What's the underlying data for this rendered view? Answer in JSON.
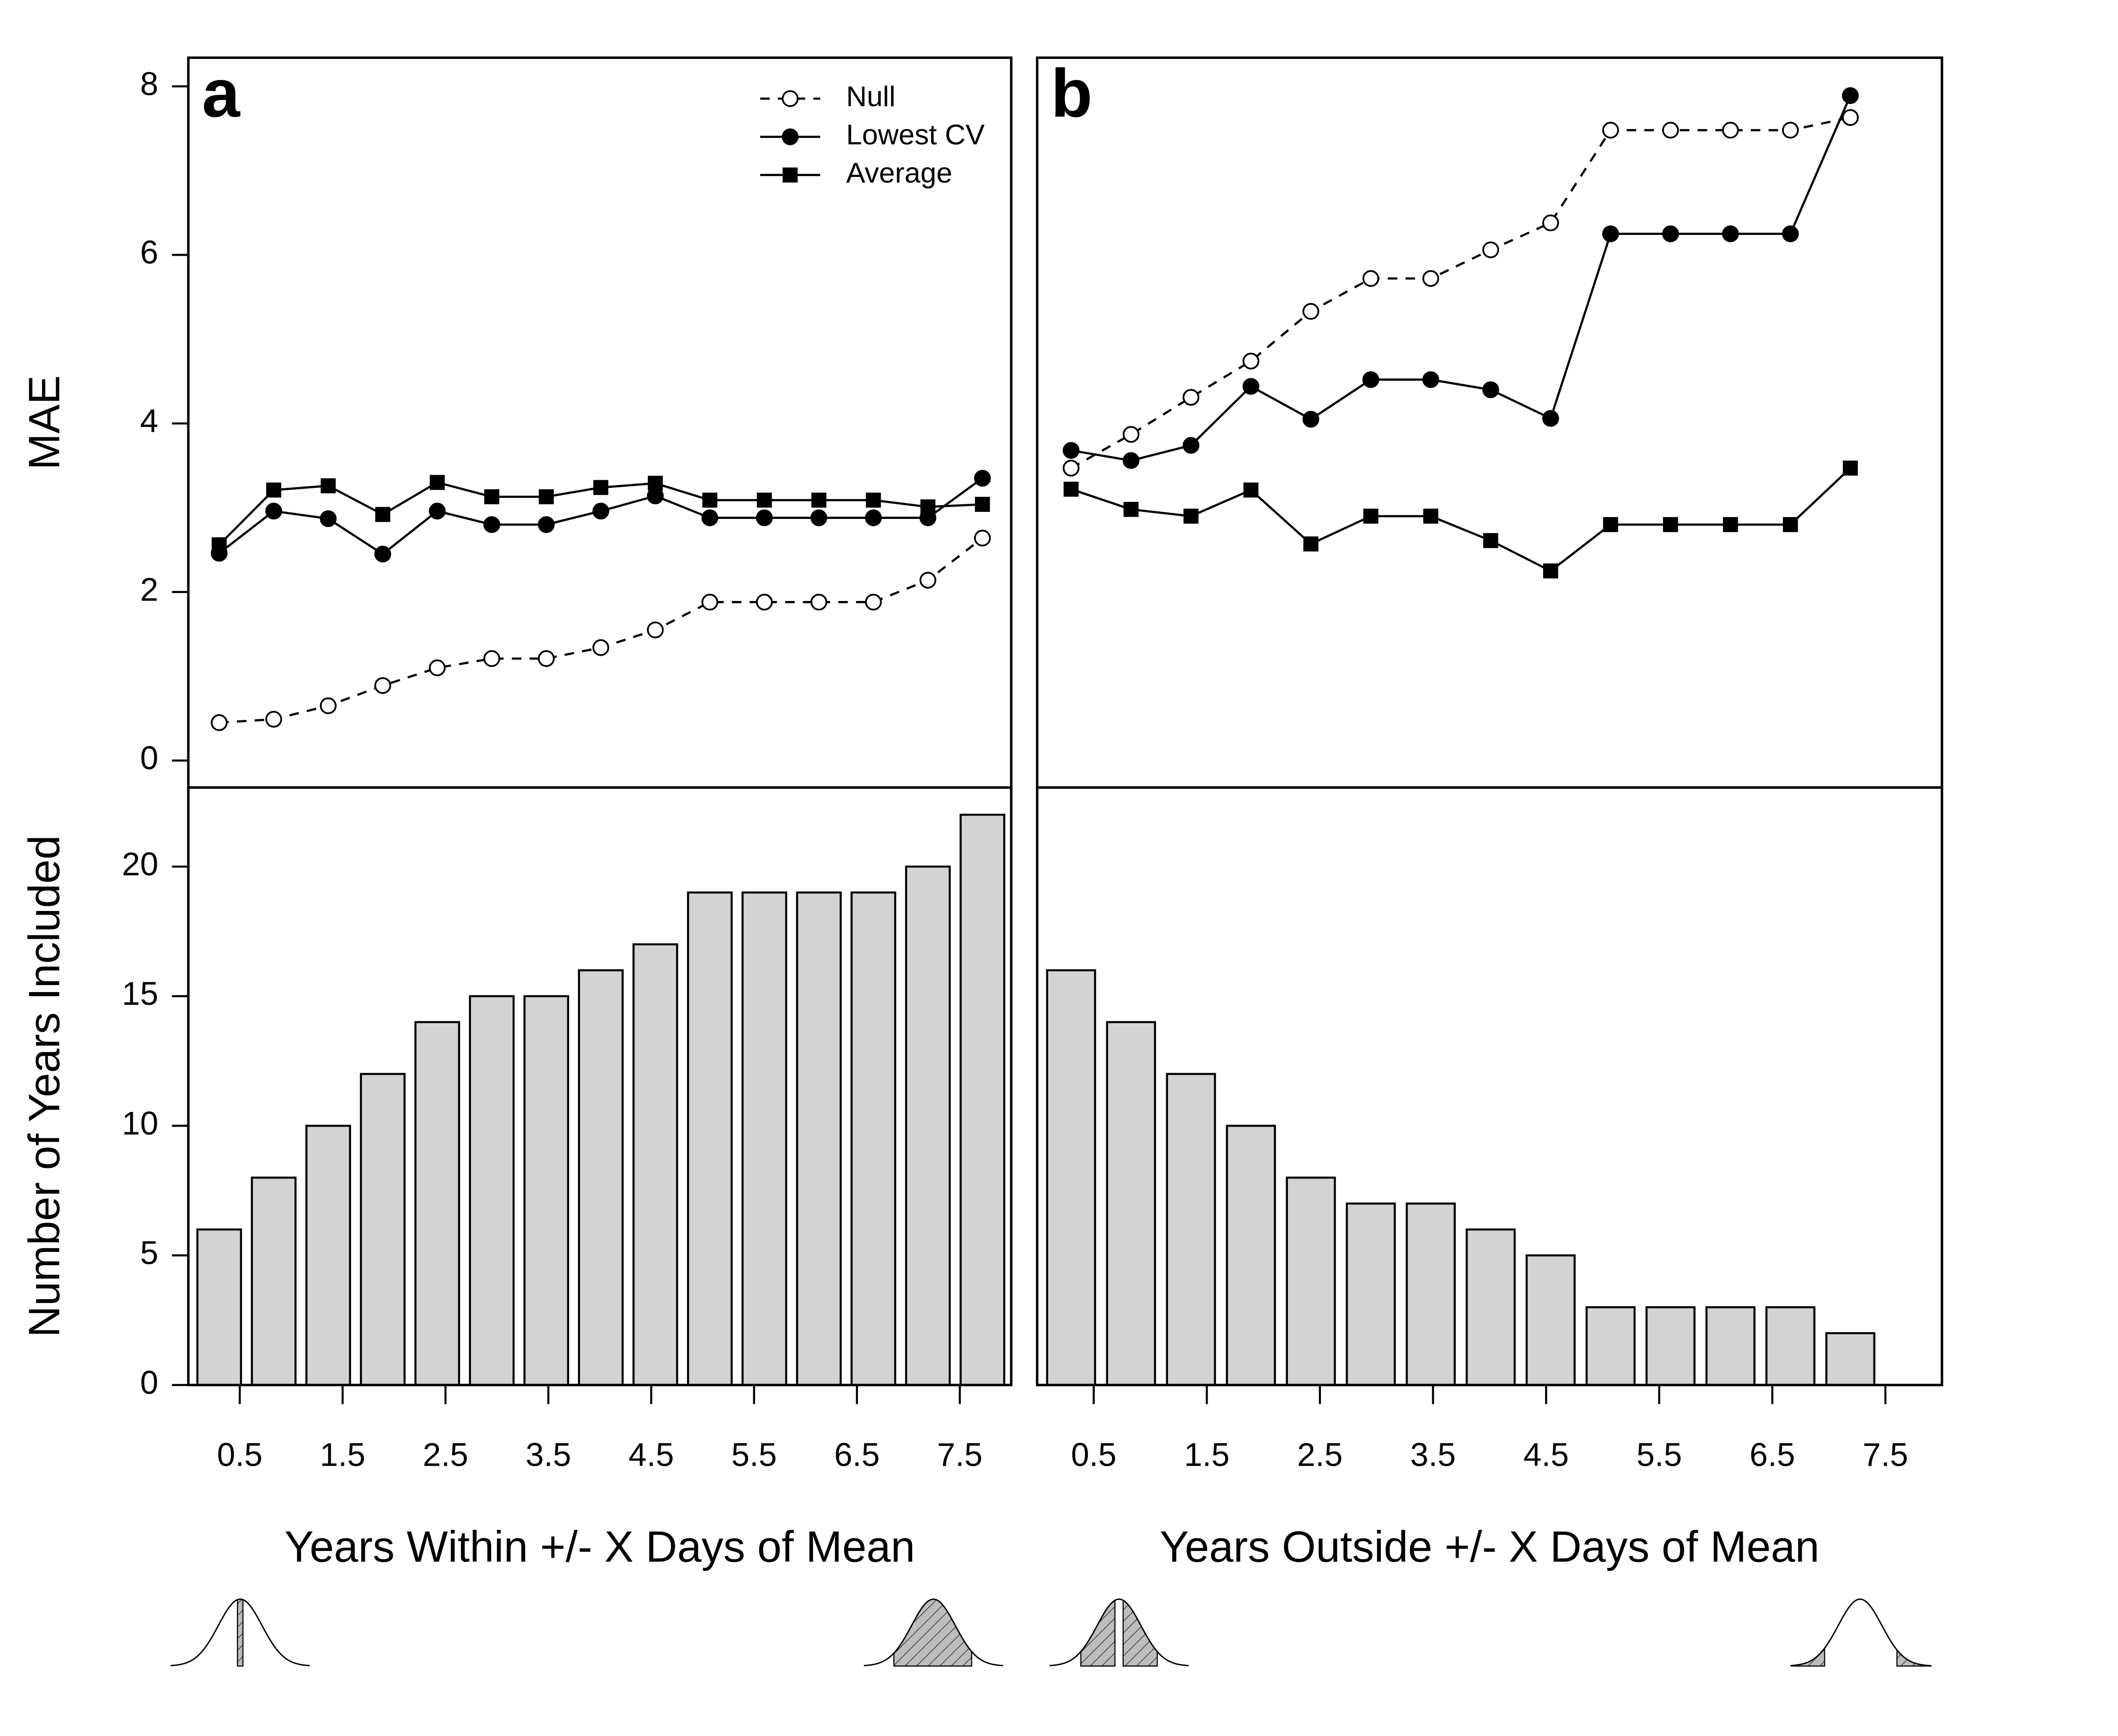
{
  "chart_data": [
    {
      "type": "line",
      "panel_label": "a",
      "ylabel": "MAE",
      "x": [
        0.3,
        0.83,
        1.36,
        1.89,
        2.42,
        2.95,
        3.48,
        4.01,
        4.54,
        5.07,
        5.6,
        6.13,
        6.66,
        7.19,
        7.72
      ],
      "xlim": [
        0,
        8
      ],
      "ylim": [
        -0.32,
        8.34
      ],
      "yticks": [
        0,
        2,
        4,
        6,
        8
      ],
      "legend": "top-right",
      "series": [
        {
          "name": "Null",
          "color": "#000000",
          "marker": "open-circle",
          "dash": true,
          "values": [
            0.45,
            0.49,
            0.65,
            0.89,
            1.1,
            1.21,
            1.21,
            1.34,
            1.55,
            1.88,
            1.88,
            1.88,
            1.88,
            2.14,
            2.64
          ]
        },
        {
          "name": "Lowest CV",
          "color": "#000000",
          "marker": "filled-circle",
          "dash": false,
          "values": [
            2.46,
            2.96,
            2.87,
            2.45,
            2.96,
            2.8,
            2.8,
            2.96,
            3.14,
            2.88,
            2.88,
            2.88,
            2.88,
            2.88,
            3.35
          ]
        },
        {
          "name": "Average",
          "color": "#000000",
          "marker": "filled-square",
          "dash": false,
          "values": [
            2.56,
            3.21,
            3.26,
            2.92,
            3.3,
            3.13,
            3.13,
            3.24,
            3.29,
            3.09,
            3.09,
            3.09,
            3.09,
            3.01,
            3.04
          ]
        }
      ]
    },
    {
      "type": "line",
      "panel_label": "b",
      "x": [
        0.3,
        0.83,
        1.36,
        1.89,
        2.42,
        2.95,
        3.48,
        4.01,
        4.54,
        5.07,
        5.6,
        6.13,
        6.66,
        7.19
      ],
      "xlim": [
        0,
        8
      ],
      "ylim": [
        -0.32,
        8.34
      ],
      "series": [
        {
          "color": "#000000",
          "marker": "open-circle",
          "dash": true,
          "values": [
            3.47,
            3.87,
            4.31,
            4.74,
            5.33,
            5.72,
            5.72,
            6.06,
            6.38,
            7.48,
            7.48,
            7.48,
            7.48,
            7.63
          ]
        },
        {
          "color": "#000000",
          "marker": "filled-circle",
          "dash": false,
          "values": [
            3.68,
            3.56,
            3.74,
            4.44,
            4.05,
            4.52,
            4.52,
            4.4,
            4.06,
            6.25,
            6.25,
            6.25,
            6.25,
            7.89
          ]
        },
        {
          "color": "#000000",
          "marker": "filled-square",
          "dash": false,
          "values": [
            3.22,
            2.98,
            2.9,
            3.21,
            2.57,
            2.9,
            2.9,
            2.61,
            2.25,
            2.8,
            2.8,
            2.8,
            2.8,
            3.47
          ]
        }
      ]
    },
    {
      "type": "bar",
      "ylabel": "Number of Years Included",
      "xlabel": "Years Within +/- X Days of Mean",
      "x": [
        0.3,
        0.83,
        1.36,
        1.89,
        2.42,
        2.95,
        3.48,
        4.01,
        4.54,
        5.07,
        5.6,
        6.13,
        6.66,
        7.19,
        7.72
      ],
      "values": [
        6,
        8,
        10,
        12,
        14,
        15,
        15,
        16,
        17,
        19,
        19,
        19,
        19,
        20,
        22
      ],
      "color": "#d3d3d3",
      "xlim": [
        0,
        8
      ],
      "xticks": [
        0.5,
        1.5,
        2.5,
        3.5,
        4.5,
        5.5,
        6.5,
        7.5
      ],
      "ylim": [
        0,
        23.05
      ],
      "yticks": [
        0,
        5,
        10,
        15,
        20
      ]
    },
    {
      "type": "bar",
      "xlabel": "Years Outside +/- X Days of Mean",
      "x": [
        0.3,
        0.83,
        1.36,
        1.89,
        2.42,
        2.95,
        3.48,
        4.01,
        4.54,
        5.07,
        5.6,
        6.13,
        6.66,
        7.19
      ],
      "values": [
        16,
        14,
        12,
        10,
        8,
        7,
        7,
        6,
        5,
        3,
        3,
        3,
        3,
        2
      ],
      "color": "#d3d3d3",
      "xlim": [
        0,
        8
      ],
      "xticks": [
        0.5,
        1.5,
        2.5,
        3.5,
        4.5,
        5.5,
        6.5,
        7.5
      ],
      "ylim": [
        0,
        23.05
      ]
    }
  ]
}
